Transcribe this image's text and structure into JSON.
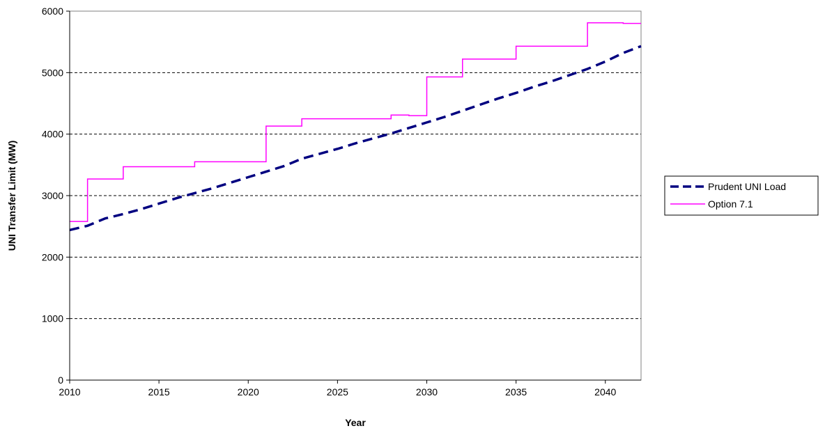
{
  "chart_data": {
    "type": "line",
    "title": "",
    "xlabel": "Year",
    "ylabel": "UNI Transfer Limit (MW)",
    "xlim": [
      2010,
      2042
    ],
    "ylim": [
      0,
      6000
    ],
    "x_ticks": [
      "2010",
      "2015",
      "2020",
      "2025",
      "2030",
      "2035",
      "2040"
    ],
    "y_ticks": [
      "0",
      "1000",
      "2000",
      "3000",
      "4000",
      "5000",
      "6000"
    ],
    "grid": "horizontal dashed",
    "legend_position": "right",
    "series": [
      {
        "name": "Prudent UNI Load",
        "style": "dashed",
        "color": "#000080",
        "points": [
          [
            2010,
            2440
          ],
          [
            2011,
            2510
          ],
          [
            2012,
            2630
          ],
          [
            2013,
            2700
          ],
          [
            2014,
            2780
          ],
          [
            2015,
            2870
          ],
          [
            2016,
            2960
          ],
          [
            2017,
            3040
          ],
          [
            2018,
            3120
          ],
          [
            2019,
            3210
          ],
          [
            2020,
            3300
          ],
          [
            2021,
            3390
          ],
          [
            2022,
            3480
          ],
          [
            2023,
            3600
          ],
          [
            2024,
            3680
          ],
          [
            2025,
            3760
          ],
          [
            2026,
            3850
          ],
          [
            2027,
            3930
          ],
          [
            2028,
            4010
          ],
          [
            2029,
            4100
          ],
          [
            2030,
            4190
          ],
          [
            2031,
            4280
          ],
          [
            2032,
            4380
          ],
          [
            2033,
            4480
          ],
          [
            2034,
            4580
          ],
          [
            2035,
            4670
          ],
          [
            2036,
            4770
          ],
          [
            2037,
            4860
          ],
          [
            2038,
            4960
          ],
          [
            2039,
            5060
          ],
          [
            2040,
            5180
          ],
          [
            2041,
            5320
          ],
          [
            2042,
            5430
          ]
        ]
      },
      {
        "name": "Option 7.1",
        "style": "step",
        "color": "#ff00ff",
        "points": [
          [
            2010,
            2580
          ],
          [
            2011,
            3270
          ],
          [
            2013,
            3470
          ],
          [
            2017,
            3550
          ],
          [
            2021,
            4130
          ],
          [
            2023,
            4250
          ],
          [
            2028,
            4310
          ],
          [
            2029,
            4300
          ],
          [
            2030,
            4930
          ],
          [
            2032,
            5220
          ],
          [
            2035,
            5430
          ],
          [
            2039,
            5810
          ],
          [
            2041,
            5800
          ],
          [
            2042,
            5800
          ]
        ]
      }
    ]
  }
}
